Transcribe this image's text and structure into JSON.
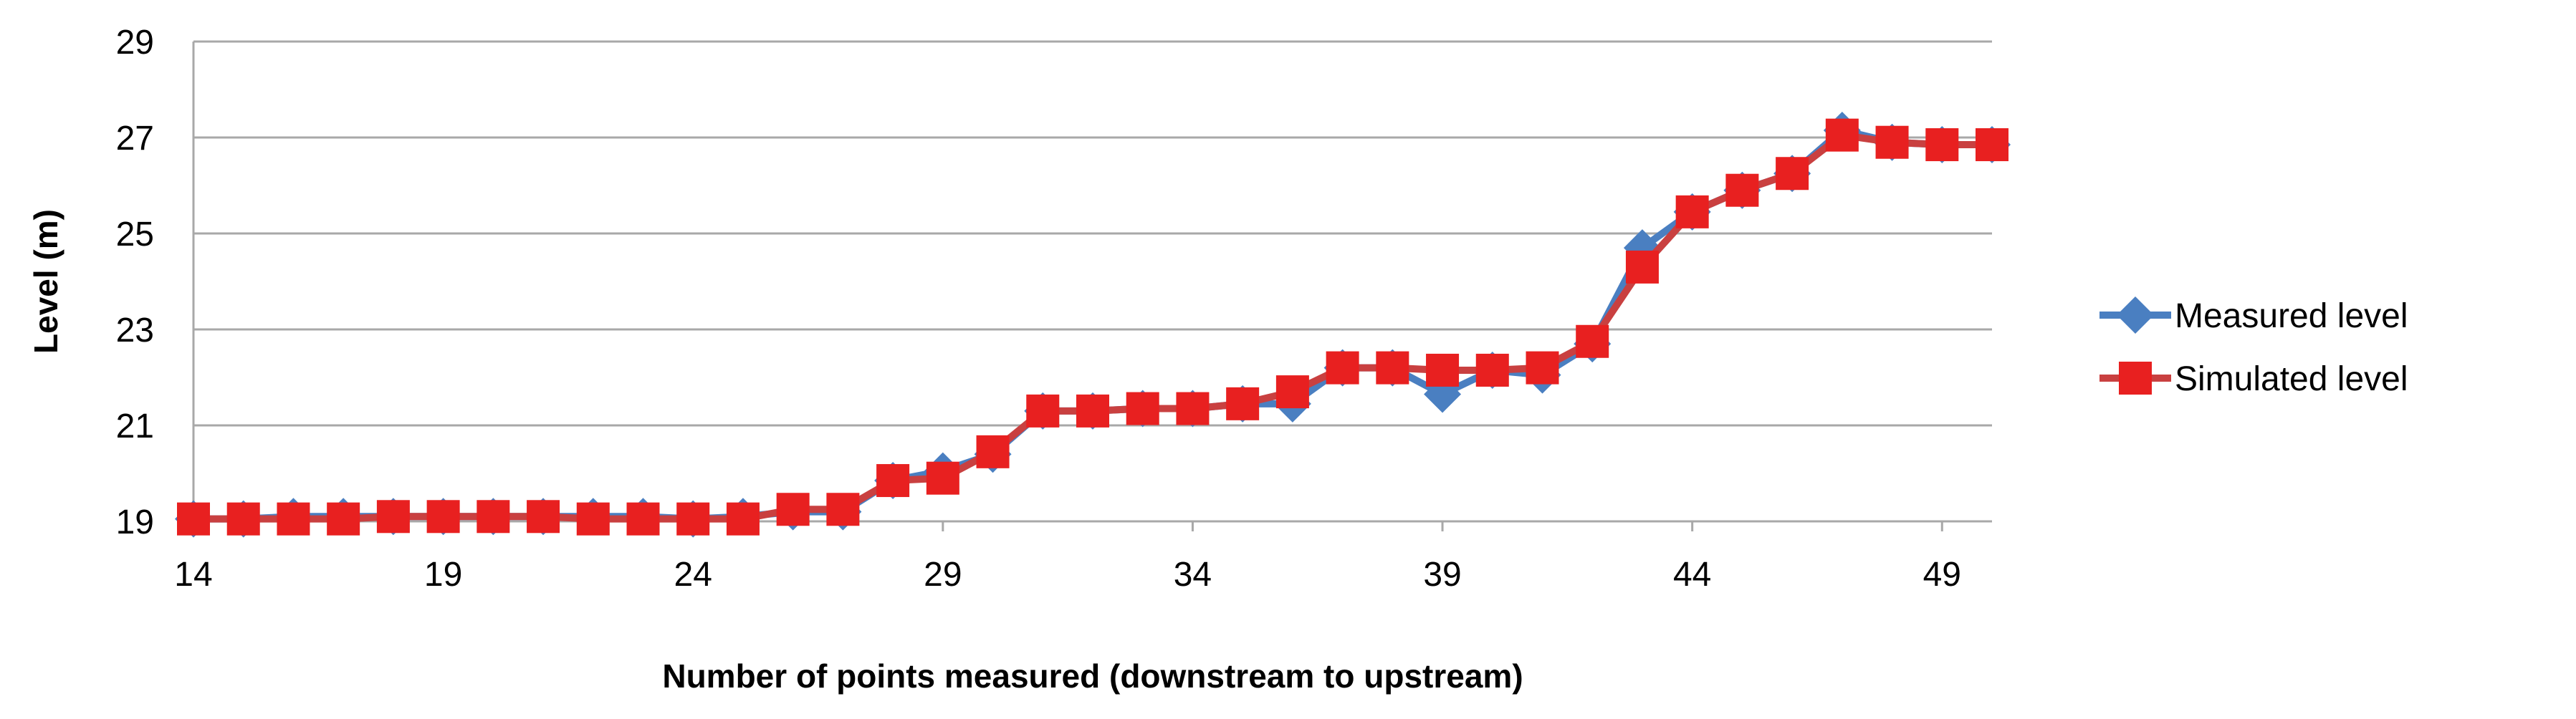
{
  "chart_data": {
    "type": "line",
    "xlabel": "Number of points measured  (downstream to upstream)",
    "ylabel": "Level (m)",
    "xlim": [
      14,
      50
    ],
    "ylim": [
      19,
      29
    ],
    "x_ticks": [
      "14",
      "19",
      "24",
      "29",
      "34",
      "39",
      "44",
      "49"
    ],
    "y_ticks": [
      "19",
      "21",
      "23",
      "25",
      "27",
      "29"
    ],
    "grid": "horizontal",
    "legend": "right",
    "x": [
      14,
      15,
      16,
      17,
      18,
      19,
      20,
      21,
      22,
      23,
      24,
      25,
      26,
      27,
      28,
      29,
      30,
      31,
      32,
      33,
      34,
      35,
      36,
      37,
      38,
      39,
      40,
      41,
      42,
      43,
      44,
      45,
      46,
      47,
      48,
      49,
      50
    ],
    "series": [
      {
        "name": "Measured level",
        "color": "#4a7fc1",
        "marker": "diamond",
        "values": [
          19.05,
          19.05,
          19.1,
          19.1,
          19.1,
          19.1,
          19.1,
          19.1,
          19.1,
          19.1,
          19.05,
          19.1,
          19.2,
          19.2,
          19.85,
          20.05,
          20.4,
          21.3,
          21.3,
          21.35,
          21.35,
          21.45,
          21.45,
          22.2,
          22.2,
          21.65,
          22.15,
          22.05,
          22.7,
          24.7,
          25.45,
          25.9,
          26.25,
          27.15,
          26.9,
          26.85,
          26.85
        ]
      },
      {
        "name": "Simulated level",
        "color": "#e82020",
        "marker": "square",
        "values": [
          19.05,
          19.05,
          19.05,
          19.05,
          19.1,
          19.1,
          19.1,
          19.1,
          19.05,
          19.05,
          19.05,
          19.05,
          19.25,
          19.25,
          19.85,
          19.9,
          20.45,
          21.3,
          21.3,
          21.35,
          21.35,
          21.45,
          21.7,
          22.2,
          22.2,
          22.15,
          22.15,
          22.2,
          22.75,
          24.3,
          25.45,
          25.9,
          26.25,
          27.05,
          26.9,
          26.85,
          26.85
        ]
      }
    ]
  }
}
